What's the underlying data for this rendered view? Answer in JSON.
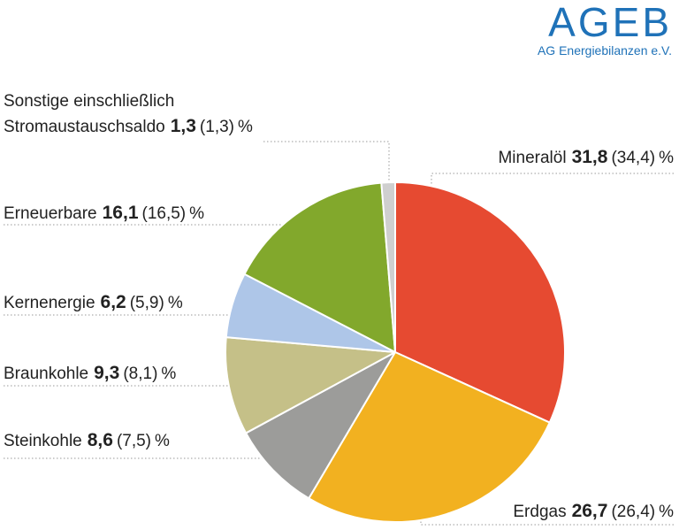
{
  "logo": {
    "main": "AGEB",
    "sub": "AG Energiebilanzen e.V.",
    "color": "#1f72b8"
  },
  "unit": "%",
  "chart_data": {
    "type": "pie",
    "title": "",
    "start_angle_deg": 0,
    "direction": "clockwise",
    "slices": [
      {
        "key": "mineraloel",
        "name": "Mineralöl",
        "value": "31,8",
        "previous": "(34,4)",
        "share": 31.8,
        "color": "#e64a31"
      },
      {
        "key": "erdgas",
        "name": "Erdgas",
        "value": "26,7",
        "previous": "(26,4)",
        "share": 26.7,
        "color": "#f2b120"
      },
      {
        "key": "steinkohle",
        "name": "Steinkohle",
        "value": "8,6",
        "previous": "(7,5)",
        "share": 8.6,
        "color": "#9c9c9a"
      },
      {
        "key": "braunkohle",
        "name": "Braunkohle",
        "value": "9,3",
        "previous": "(8,1)",
        "share": 9.3,
        "color": "#c5c088"
      },
      {
        "key": "kernenergie",
        "name": "Kernenergie",
        "value": "6,2",
        "previous": "(5,9)",
        "share": 6.2,
        "color": "#aec6e8"
      },
      {
        "key": "erneuerbare",
        "name": "Erneuerbare",
        "value": "16,1",
        "previous": "(16,5)",
        "share": 16.1,
        "color": "#82a82c"
      },
      {
        "key": "sonstige",
        "name_line1": "Sonstige einschließlich",
        "name": "Stromaustauschsaldo",
        "value": "1,3",
        "previous": "(1,3)",
        "share": 1.3,
        "color": "#cfcfcf"
      }
    ]
  }
}
